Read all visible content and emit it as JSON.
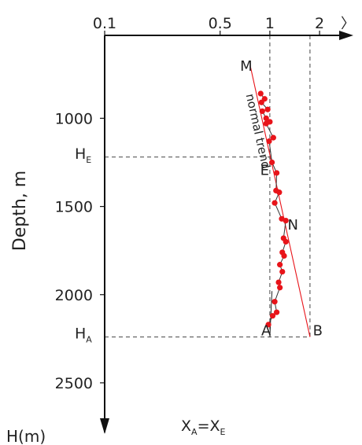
{
  "chart_data": {
    "type": "scatter",
    "x_scale": "log",
    "xlim": [
      0.1,
      2.6
    ],
    "ylim": [
      530,
      2750
    ],
    "y_inverted": true,
    "grid": false,
    "x_ticks": [
      {
        "value": 0.1,
        "label": "0.1"
      },
      {
        "value": 0.5,
        "label": "0.5"
      },
      {
        "value": 1,
        "label": "1"
      },
      {
        "value": 2,
        "label": "2"
      }
    ],
    "y_ticks": [
      {
        "value": 1000,
        "label": "1000"
      },
      {
        "value": 1500,
        "label": "1500"
      },
      {
        "value": 2000,
        "label": "2000"
      },
      {
        "value": 2500,
        "label": "2500"
      }
    ],
    "ylabel": "Depth, m",
    "yunit_label": "H(m)",
    "bottom_label": {
      "base": "X",
      "sub1": "A",
      "eq": "=X",
      "sub2": "E"
    },
    "points": [
      {
        "x": 0.88,
        "y": 860
      },
      {
        "x": 0.93,
        "y": 890
      },
      {
        "x": 0.89,
        "y": 910
      },
      {
        "x": 0.97,
        "y": 950
      },
      {
        "x": 0.9,
        "y": 960
      },
      {
        "x": 0.95,
        "y": 1000
      },
      {
        "x": 1.0,
        "y": 1020
      },
      {
        "x": 0.95,
        "y": 1030
      },
      {
        "x": 1.05,
        "y": 1110
      },
      {
        "x": 0.99,
        "y": 1130
      },
      {
        "x": 1.03,
        "y": 1250
      },
      {
        "x": 1.1,
        "y": 1310
      },
      {
        "x": 1.09,
        "y": 1410
      },
      {
        "x": 1.14,
        "y": 1420
      },
      {
        "x": 1.07,
        "y": 1480
      },
      {
        "x": 1.18,
        "y": 1570
      },
      {
        "x": 1.25,
        "y": 1580
      },
      {
        "x": 1.21,
        "y": 1680
      },
      {
        "x": 1.25,
        "y": 1700
      },
      {
        "x": 1.19,
        "y": 1760
      },
      {
        "x": 1.22,
        "y": 1780
      },
      {
        "x": 1.15,
        "y": 1830
      },
      {
        "x": 1.19,
        "y": 1870
      },
      {
        "x": 1.13,
        "y": 1930
      },
      {
        "x": 1.15,
        "y": 1960
      },
      {
        "x": 1.07,
        "y": 2040
      },
      {
        "x": 1.1,
        "y": 2100
      },
      {
        "x": 1.04,
        "y": 2120
      },
      {
        "x": 0.98,
        "y": 2170
      }
    ],
    "trend_line": {
      "label": "normal trend",
      "from": {
        "x": 0.76,
        "y": 700
      },
      "to": {
        "x": 1.75,
        "y": 2240
      }
    },
    "reference_lines": [
      {
        "type": "vertical",
        "x": 1,
        "style": "dashed"
      },
      {
        "type": "vertical",
        "x": 1.75,
        "y_from": 530,
        "y_to": 2240,
        "style": "dashed"
      },
      {
        "type": "horizontal",
        "y": 1220,
        "x_from": 0.1,
        "x_to": 1.0,
        "style": "dashed"
      },
      {
        "type": "horizontal",
        "y": 2240,
        "x_from": 0.1,
        "x_to": 1.75,
        "style": "dashed"
      },
      {
        "type": "segment",
        "from": {
          "x": 1.0,
          "y": 2240
        },
        "to": {
          "x": 1.03,
          "y": 1980
        },
        "style": "solid"
      }
    ],
    "y_markers": [
      {
        "y": 1220,
        "base": "H",
        "sub": "E"
      },
      {
        "y": 2240,
        "base": "H",
        "sub": "A"
      }
    ],
    "point_labels": [
      {
        "text": "M",
        "x": 0.72,
        "y": 700
      },
      {
        "text": "E",
        "x": 0.93,
        "y": 1290
      },
      {
        "text": "N",
        "x": 1.38,
        "y": 1600
      },
      {
        "text": "A",
        "x": 0.95,
        "y": 2200
      },
      {
        "text": "B",
        "x": 1.95,
        "y": 2200
      }
    ],
    "colors": {
      "points": "#e8141a",
      "trend": "#e8141a",
      "axes": "#111111",
      "dashed": "#444444"
    }
  }
}
